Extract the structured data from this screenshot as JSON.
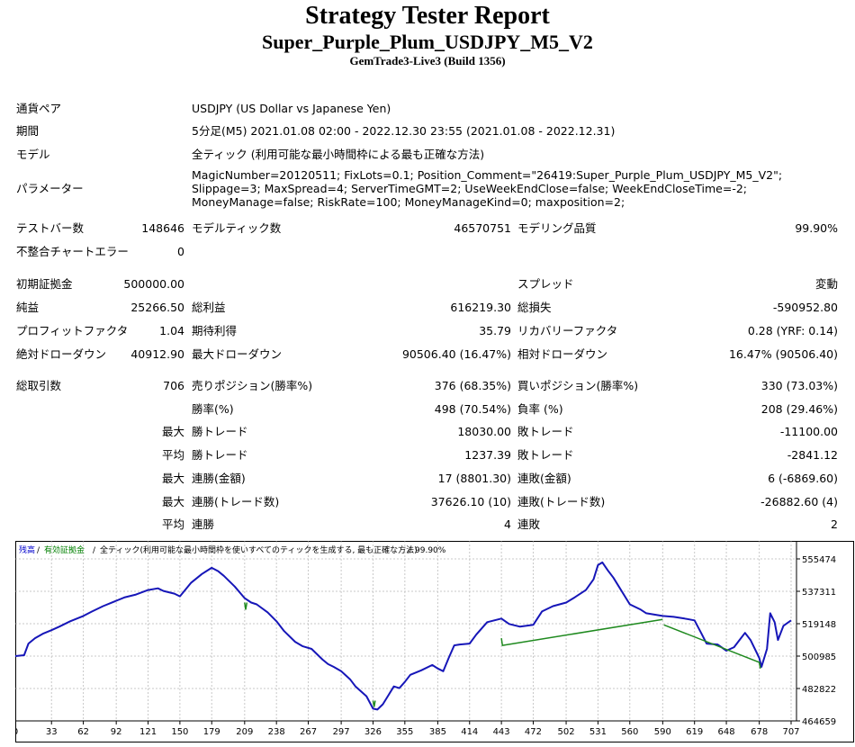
{
  "header": {
    "title": "Strategy Tester Report",
    "subtitle": "Super_Purple_Plum_USDJPY_M5_V2",
    "build": "GemTrade3-Live3 (Build 1356)"
  },
  "info": {
    "symbol_label": "通貨ペア",
    "symbol_value": "USDJPY (US Dollar vs Japanese Yen)",
    "period_label": "期間",
    "period_value": "5分足(M5) 2021.01.08 02:00 - 2022.12.30 23:55 (2021.01.08 - 2022.12.31)",
    "model_label": "モデル",
    "model_value": "全ティック (利用可能な最小時間枠による最も正確な方法)",
    "params_label": "パラメーター",
    "params_value": "MagicNumber=20120511; FixLots=0.1; Position_Comment=\"26419:Super_Purple_Plum_USDJPY_M5_V2\"; Slippage=3; MaxSpread=4; ServerTimeGMT=2; UseWeekEndClose=false; WeekEndCloseTime=-2; MoneyManage=false; RiskRate=100; MoneyManageKind=0; maxposition=2;"
  },
  "stats": {
    "bars_label": "テストバー数",
    "bars_value": "148646",
    "ticks_label": "モデルティック数",
    "ticks_value": "46570751",
    "quality_label": "モデリング品質",
    "quality_value": "99.90%",
    "mismatch_label": "不整合チャートエラー",
    "mismatch_value": "0",
    "deposit_label": "初期証拠金",
    "deposit_value": "500000.00",
    "spread_label": "スプレッド",
    "spread_value": "変動",
    "net_label": "純益",
    "net_value": "25266.50",
    "gross_profit_label": "総利益",
    "gross_profit_value": "616219.30",
    "gross_loss_label": "総損失",
    "gross_loss_value": "-590952.80",
    "pf_label": "プロフィットファクタ",
    "pf_value": "1.04",
    "expected_label": "期待利得",
    "expected_value": "35.79",
    "recovery_label": "リカバリーファクタ",
    "recovery_value": "0.28 (YRF: 0.14)",
    "abs_dd_label": "絶対ドローダウン",
    "abs_dd_value": "40912.90",
    "max_dd_label": "最大ドローダウン",
    "max_dd_value": "90506.40 (16.47%)",
    "rel_dd_label": "相対ドローダウン",
    "rel_dd_value": "16.47% (90506.40)",
    "trades_label": "総取引数",
    "trades_value": "706",
    "short_label": "売りポジション(勝率%)",
    "short_value": "376 (68.35%)",
    "long_label": "買いポジション(勝率%)",
    "long_value": "330 (73.03%)",
    "win_label": "勝率(%)",
    "win_value": "498 (70.54%)",
    "loss_label": "負率 (%)",
    "loss_value": "208 (29.46%)",
    "r_max": "最大",
    "r_avg": "平均",
    "lwin_label": "勝トレード",
    "lwin_value": "18030.00",
    "lloss_label": "敗トレード",
    "lloss_value": "-11100.00",
    "awin_label": "勝トレード",
    "awin_value": "1237.39",
    "aloss_label": "敗トレード",
    "aloss_value": "-2841.12",
    "mcw_label": "連勝(金額)",
    "mcw_value": "17 (8801.30)",
    "mcl_label": "連敗(金額)",
    "mcl_value": "6 (-6869.60)",
    "mcp_label": "連勝(トレード数)",
    "mcp_value": "37626.10 (10)",
    "mcpl_label": "連敗(トレード数)",
    "mcpl_value": "-26882.60 (4)",
    "acw_label": "連勝",
    "acw_value": "4",
    "acl_label": "連敗",
    "acl_value": "2"
  },
  "chart_data": {
    "type": "line",
    "legend_balance": "残高",
    "legend_equity": "有効証拠金",
    "legend_rest": "全ティック(利用可能な最小時間枠を使いすべてのティックを生成する, 最も正確な方法)",
    "legend_quality": "99.90%",
    "colors": {
      "balance": "#1616b8",
      "equity": "#1f8a1f",
      "grid": "#c8c8c8",
      "legend_balance": "#0000cc",
      "legend_equity": "#008000"
    },
    "y_ticks": [
      "555474",
      "537311",
      "519148",
      "500985",
      "482822",
      "464659"
    ],
    "x_ticks": [
      "0",
      "33",
      "62",
      "92",
      "121",
      "150",
      "179",
      "209",
      "238",
      "267",
      "297",
      "326",
      "355",
      "385",
      "414",
      "443",
      "472",
      "502",
      "531",
      "560",
      "590",
      "619",
      "648",
      "678",
      "707"
    ],
    "ylim": [
      464659,
      555474
    ],
    "xlim": [
      0,
      707
    ],
    "series": [
      {
        "name": "残高",
        "x": [
          0,
          8,
          12,
          18,
          25,
          33,
          40,
          50,
          62,
          70,
          80,
          92,
          100,
          110,
          121,
          130,
          135,
          145,
          150,
          160,
          170,
          179,
          185,
          190,
          200,
          209,
          215,
          220,
          230,
          238,
          245,
          255,
          262,
          270,
          280,
          285,
          290,
          297,
          305,
          310,
          320,
          326,
          330,
          335,
          340,
          345,
          350,
          355,
          360,
          370,
          380,
          385,
          390,
          395,
          400,
          405,
          414,
          420,
          430,
          443,
          450,
          460,
          472,
          480,
          490,
          502,
          510,
          520,
          527,
          531,
          535,
          540,
          545,
          550,
          560,
          570,
          575,
          590,
          600,
          610,
          619,
          625,
          630,
          640,
          648,
          655,
          660,
          665,
          670,
          678,
          680,
          685,
          688,
          692,
          695,
          700,
          707
        ],
        "y": [
          500985,
          501500,
          508000,
          511000,
          513500,
          515500,
          517500,
          520500,
          523500,
          526000,
          529000,
          532000,
          534000,
          535500,
          538000,
          539000,
          537500,
          536000,
          534500,
          542000,
          547000,
          550500,
          548500,
          546000,
          540000,
          533500,
          531000,
          530000,
          525500,
          520500,
          515000,
          509000,
          506500,
          505000,
          499000,
          496500,
          495000,
          492500,
          488000,
          484000,
          478500,
          471500,
          471000,
          474000,
          479000,
          484000,
          483000,
          486500,
          490500,
          493000,
          496000,
          494000,
          492500,
          500000,
          507000,
          507500,
          508000,
          513000,
          520000,
          522000,
          519000,
          517500,
          518500,
          526000,
          529000,
          531000,
          534000,
          538000,
          544000,
          552000,
          553500,
          549000,
          545000,
          540000,
          530000,
          527000,
          525000,
          523500,
          523000,
          522000,
          521000,
          514000,
          508000,
          507500,
          504000,
          506000,
          510000,
          514000,
          510000,
          500000,
          495000,
          505000,
          525000,
          520000,
          510000,
          518000,
          521000
        ]
      },
      {
        "name": "有効証拠金",
        "x": [
          209,
          210,
          211,
          326,
          327,
          328,
          443,
          444,
          590,
          591,
          678,
          679,
          680
        ],
        "y": [
          531000,
          527000,
          531000,
          476000,
          472500,
          476000,
          511000,
          507000,
          521500,
          518500,
          497500,
          494000,
          497500
        ]
      }
    ]
  }
}
